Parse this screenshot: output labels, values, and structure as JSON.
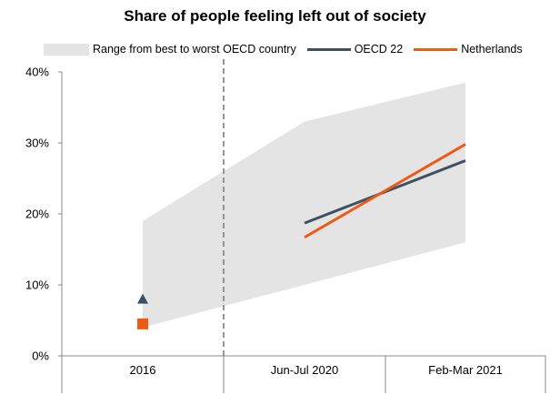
{
  "chart_data": {
    "type": "line",
    "title": "Share of people feeling left out of society",
    "categories": [
      "2016",
      "Jun-Jul 2020",
      "Feb-Mar 2021"
    ],
    "yticks": [
      "0%",
      "10%",
      "20%",
      "30%",
      "40%"
    ],
    "ylim": [
      0,
      40
    ],
    "legend_position": "top",
    "band": {
      "name": "Range from best to worst OECD country",
      "color": "#e4e4e4",
      "upper": [
        19,
        33,
        38.5
      ],
      "lower": [
        4,
        10,
        16
      ]
    },
    "series": [
      {
        "name": "OECD 22",
        "color": "#3e5063",
        "values": [
          8,
          18.7,
          27.5
        ]
      },
      {
        "name": "Netherlands",
        "color": "#ed5b13",
        "values": [
          4.5,
          16.7,
          29.8
        ]
      }
    ],
    "grid": false
  }
}
